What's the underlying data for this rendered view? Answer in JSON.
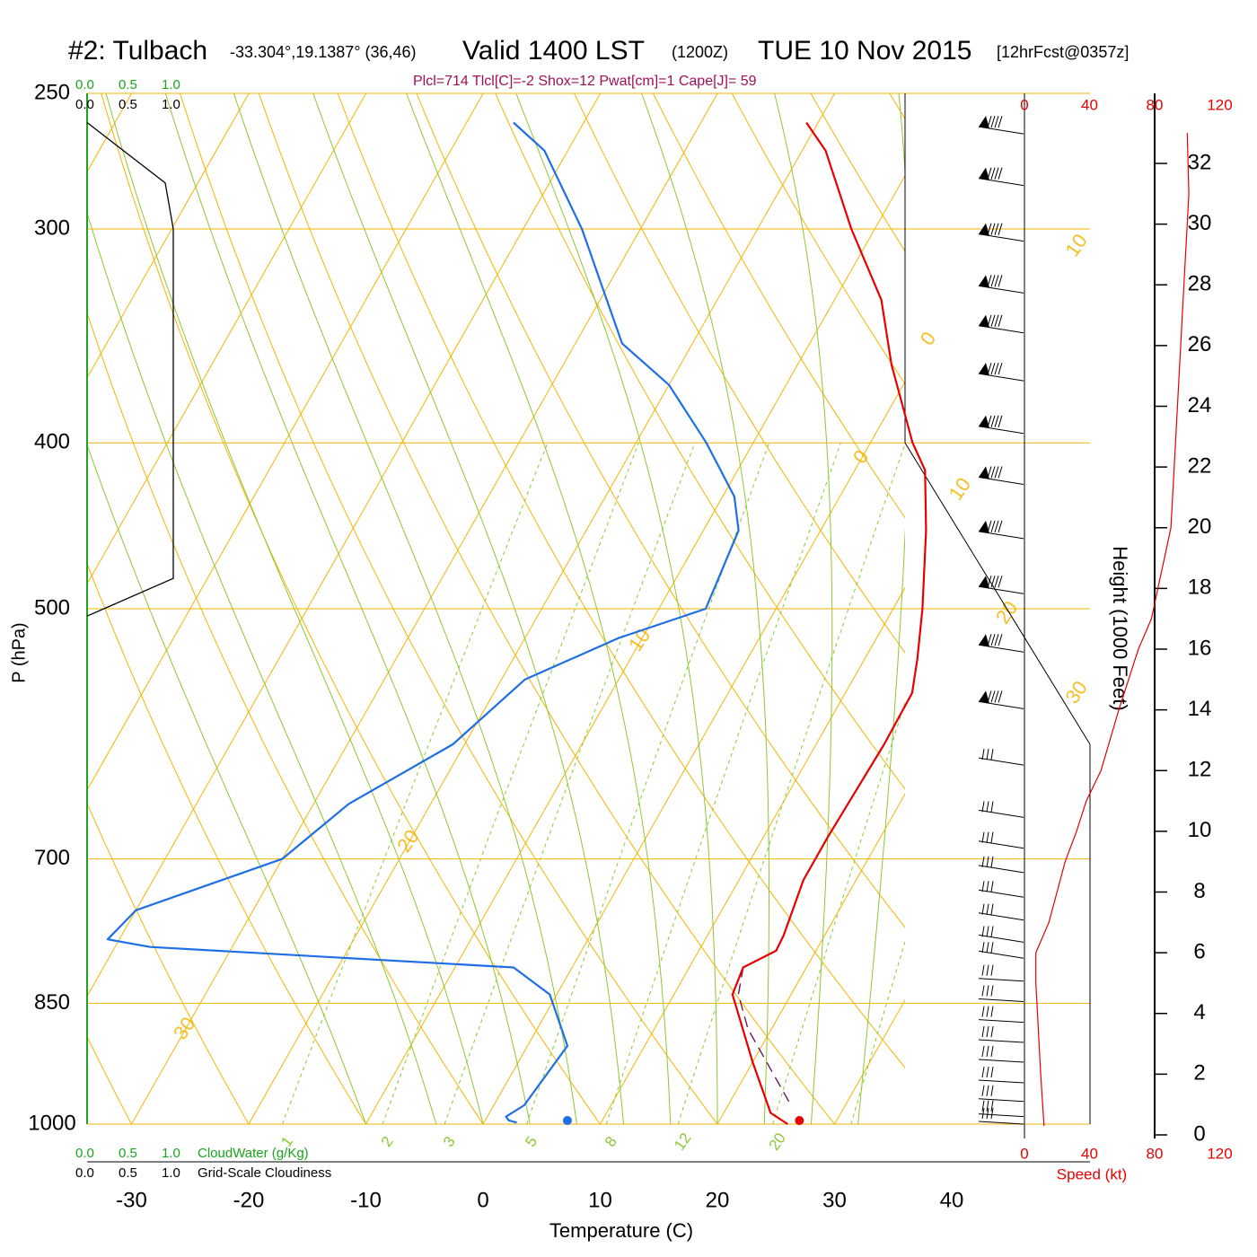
{
  "header": {
    "station": "#2: Tulbach",
    "coords": "-33.304°,19.1387° (36,46)",
    "valid": "Valid 1400 LST",
    "zulu": "(1200Z)",
    "date": "TUE 10 Nov 2015",
    "forecast": "[12hrFcst@0357z]",
    "params": "Plcl=714 Tlcl[C]=-2 Shox=12 Pwat[cm]=1 Cape[J]= 59"
  },
  "legend": {
    "cw_ticks": [
      "0.0",
      "0.5",
      "1.0"
    ],
    "cloud_ticks": [
      "0.0",
      "0.5",
      "1.0"
    ],
    "cloudwater_label": "CloudWater (g/Kg)",
    "cloudiness_label": "Grid-Scale Cloudiness"
  },
  "colors": {
    "isotherm": "#f5b400",
    "dry_adiabat": "#f5b400",
    "moist_adiabat": "#8cc832",
    "mixing_ratio": "#8cc832",
    "temperature": "#e60000",
    "dewpoint": "#1e6ee6",
    "parcel": "#6a1a5a",
    "cloud": "#000000",
    "cloudwater": "#1aa51a",
    "speed": "#e60000",
    "params": "#a0105a"
  },
  "chart_data": {
    "type": "skew-t",
    "xlabel": "Temperature (C)",
    "ylabel": "P (hPa)",
    "xticks": [
      "-30",
      "-20",
      "-10",
      "0",
      "10",
      "20",
      "30",
      "40"
    ],
    "x_values": [
      -30,
      -20,
      -10,
      0,
      10,
      20,
      30,
      40
    ],
    "xlim": [
      -34,
      36
    ],
    "pressure_levels": [
      250,
      300,
      400,
      500,
      700,
      850,
      1000
    ],
    "pressure_labels": [
      "250",
      "300",
      "400",
      "500",
      "700",
      "850",
      "1000"
    ],
    "ylim": [
      1000,
      250
    ],
    "isotherm_labels": [
      {
        "text": "10",
        "t": 10,
        "p": 307
      },
      {
        "text": "0",
        "t": 0,
        "p": 408
      },
      {
        "text": "10",
        "t": -10,
        "p": 522
      },
      {
        "text": "20",
        "t": -20,
        "p": 684
      },
      {
        "text": "30",
        "t": -30,
        "p": 880
      },
      {
        "text": "0",
        "t": 0,
        "p": 348
      },
      {
        "text": "10",
        "t": 10,
        "p": 426
      },
      {
        "text": "20",
        "t": 20,
        "p": 503
      },
      {
        "text": "30",
        "t": 30,
        "p": 560
      }
    ],
    "mixing_ratio_labels": [
      "1",
      "2",
      "3",
      "5",
      "8",
      "12",
      "20"
    ],
    "mixing_ratio_values": [
      1,
      2,
      3,
      5,
      8,
      12,
      20
    ],
    "temperature": {
      "name": "Temperature",
      "points": [
        [
          26,
          1000
        ],
        [
          24,
          985
        ],
        [
          20,
          920
        ],
        [
          15,
          840
        ],
        [
          14.6,
          810
        ],
        [
          16.6,
          792
        ],
        [
          16.5,
          776
        ],
        [
          15.5,
          720
        ],
        [
          15.5,
          680
        ],
        [
          15.8,
          600
        ],
        [
          15.7,
          560
        ],
        [
          14.5,
          535
        ],
        [
          12.5,
          500
        ],
        [
          9,
          450
        ],
        [
          6,
          415
        ],
        [
          3.6,
          400
        ],
        [
          -2,
          360
        ],
        [
          -6,
          330
        ],
        [
          -12,
          300
        ],
        [
          -18,
          270
        ],
        [
          -21,
          260
        ]
      ]
    },
    "dewpoint": {
      "name": "Dewpoint",
      "points": [
        [
          2.8,
          998
        ],
        [
          2,
          995
        ],
        [
          1.6,
          990
        ],
        [
          2.6,
          975
        ],
        [
          3.4,
          900
        ],
        [
          -0.6,
          840
        ],
        [
          -5,
          810
        ],
        [
          -37,
          788
        ],
        [
          -41,
          780
        ],
        [
          -40,
          750
        ],
        [
          -30,
          700
        ],
        [
          -27,
          650
        ],
        [
          -21,
          600
        ],
        [
          -18,
          550
        ],
        [
          -12,
          520
        ],
        [
          -6,
          500
        ],
        [
          -7,
          450
        ],
        [
          -9,
          430
        ],
        [
          -14,
          400
        ],
        [
          -20,
          370
        ],
        [
          -26,
          350
        ],
        [
          -35,
          300
        ],
        [
          -42,
          270
        ],
        [
          -46,
          260
        ]
      ]
    },
    "parcel": {
      "name": "Parcel",
      "points": [
        [
          25,
          970
        ],
        [
          18,
          880
        ],
        [
          15.5,
          840
        ],
        [
          14.6,
          810
        ]
      ]
    },
    "surface_temperature": 27,
    "surface_dewpoint": 7.2,
    "cloudiness": {
      "name": "Grid-Scale Cloudiness",
      "points": [
        [
          0,
          260
        ],
        [
          0.68,
          282
        ],
        [
          0.75,
          300
        ],
        [
          0.75,
          480
        ],
        [
          0,
          505
        ]
      ]
    },
    "wind_barbs": {
      "pressures": [
        264,
        283,
        305,
        327,
        345,
        368,
        395,
        423,
        455,
        490,
        530,
        572,
        617,
        662,
        690,
        713,
        737,
        760,
        783,
        800,
        825,
        848,
        872,
        896,
        920,
        946,
        970,
        990,
        1000
      ]
    },
    "height_axis": {
      "label": "Height (1000 Feet)",
      "ticks": [
        "32",
        "30",
        "28",
        "26",
        "24",
        "22",
        "20",
        "18",
        "16",
        "14",
        "12",
        "10",
        "8",
        "6",
        "4",
        "2",
        "0"
      ],
      "values": [
        32,
        30,
        28,
        26,
        24,
        22,
        20,
        18,
        16,
        14,
        12,
        10,
        8,
        6,
        4,
        2,
        0
      ]
    },
    "speed_axis": {
      "label": "Speed (kt)",
      "ticks": [
        "0",
        "40",
        "80",
        "120"
      ],
      "values": [
        0,
        40,
        80,
        120
      ]
    },
    "wind_speed_profile": {
      "name": "Speed",
      "points": [
        [
          12,
          0.3
        ],
        [
          10,
          2
        ],
        [
          7,
          5
        ],
        [
          7,
          6
        ],
        [
          15,
          7
        ],
        [
          20,
          8
        ],
        [
          25,
          9
        ],
        [
          32,
          10
        ],
        [
          38,
          11
        ],
        [
          47,
          12
        ],
        [
          58,
          14
        ],
        [
          70,
          16
        ],
        [
          78,
          17
        ],
        [
          82,
          18
        ],
        [
          86,
          19
        ],
        [
          90,
          20
        ],
        [
          92,
          22
        ],
        [
          94,
          24
        ],
        [
          96,
          26
        ],
        [
          98,
          28
        ],
        [
          100,
          30
        ],
        [
          101,
          31
        ],
        [
          100,
          33
        ]
      ]
    }
  }
}
